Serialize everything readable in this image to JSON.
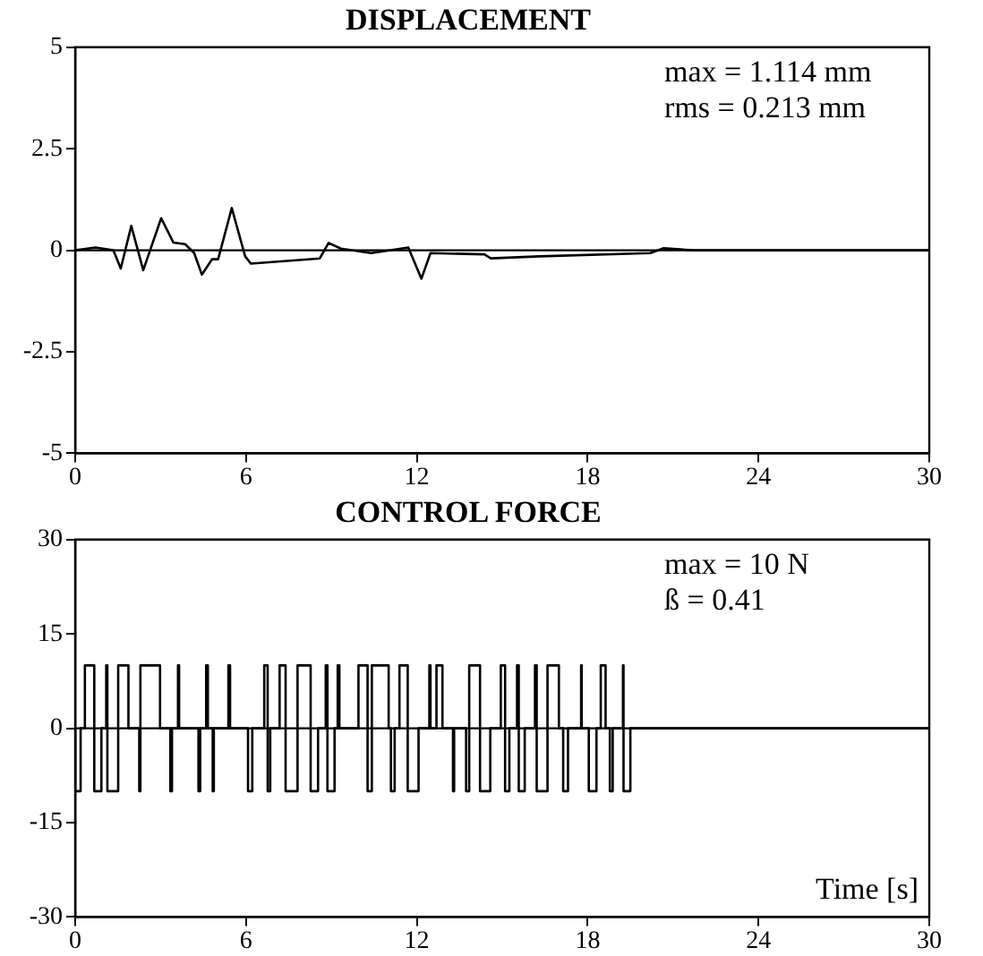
{
  "chart_data": [
    {
      "type": "line",
      "title": "DISPLACEMENT",
      "color": "#000000",
      "marker": "none",
      "grid": false,
      "legend": false,
      "annotations": [
        "max = 1.114 mm",
        "rms = 0.213 mm"
      ],
      "ref_lines": [
        {
          "axis": "y",
          "value": 0
        }
      ],
      "xlim": [
        0,
        30
      ],
      "xticks": [
        0,
        6,
        12,
        18,
        24,
        30
      ],
      "ylim": [
        -5,
        5
      ],
      "yticks": [
        -5,
        -2.5,
        0,
        2.5,
        5
      ],
      "x": [
        0,
        0.71,
        1.34,
        1.6,
        1.97,
        2.39,
        3.02,
        3.45,
        3.86,
        4.18,
        4.45,
        4.81,
        5.02,
        5.5,
        5.97,
        6.17,
        8.59,
        8.9,
        9.33,
        10.4,
        11.7,
        12.16,
        12.48,
        14.37,
        14.6,
        16.3,
        20.2,
        20.67,
        21.7,
        30
      ],
      "values": [
        0,
        0.07,
        0,
        -0.45,
        0.6,
        -0.49,
        0.79,
        0.19,
        0.15,
        -0.07,
        -0.6,
        -0.22,
        -0.22,
        1.04,
        -0.15,
        -0.33,
        -0.2,
        0.18,
        0.04,
        -0.07,
        0.07,
        -0.7,
        -0.07,
        -0.1,
        -0.2,
        -0.15,
        -0.07,
        0.05,
        0,
        0
      ]
    },
    {
      "type": "step",
      "title": "CONTROL FORCE",
      "xlabel": "Time [s]",
      "color": "#000000",
      "marker": "none",
      "grid": false,
      "legend": false,
      "annotations": [
        "max = 10 N",
        "ß = 0.41"
      ],
      "ref_lines": [
        {
          "axis": "y",
          "value": 0
        }
      ],
      "xlim": [
        0,
        30
      ],
      "xticks": [
        0,
        6,
        12,
        18,
        24,
        30
      ],
      "ylim": [
        -30,
        30
      ],
      "yticks": [
        -30,
        -15,
        0,
        15,
        30
      ],
      "x": [
        0,
        0.19,
        0.34,
        0.67,
        0.92,
        1.09,
        1.13,
        1.51,
        1.87,
        2.25,
        2.29,
        2.98,
        3.34,
        3.4,
        3.61,
        3.65,
        4.33,
        4.39,
        4.6,
        4.66,
        4.83,
        4.87,
        5.38,
        5.44,
        6.07,
        6.22,
        6.64,
        6.76,
        6.85,
        7.18,
        7.39,
        7.81,
        8.27,
        8.53,
        8.8,
        8.86,
        9.11,
        9.22,
        9.28,
        9.95,
        10.27,
        10.42,
        11.01,
        11.09,
        11.22,
        11.39,
        11.68,
        12.06,
        12.44,
        12.48,
        12.69,
        12.9,
        13.27,
        13.31,
        13.73,
        13.84,
        14.22,
        14.58,
        14.95,
        15.1,
        15.25,
        15.52,
        15.58,
        15.79,
        16.15,
        16.21,
        16.59,
        16.99,
        17.14,
        17.31,
        17.77,
        17.79,
        18.04,
        18.31,
        18.46,
        18.63,
        18.78,
        18.88,
        19.24,
        19.26,
        19.5,
        20.1,
        30
      ],
      "values": [
        0,
        -10,
        0,
        10,
        -10,
        0,
        10,
        -10,
        10,
        0,
        -10,
        10,
        0,
        -10,
        0,
        10,
        0,
        -10,
        0,
        10,
        0,
        -10,
        0,
        10,
        0,
        -10,
        0,
        10,
        -10,
        0,
        10,
        -10,
        10,
        -10,
        0,
        10,
        -10,
        0,
        10,
        0,
        10,
        -10,
        10,
        0,
        -10,
        0,
        10,
        -10,
        0,
        10,
        0,
        10,
        0,
        -10,
        0,
        -10,
        10,
        -10,
        0,
        10,
        -10,
        0,
        10,
        -10,
        0,
        10,
        -10,
        10,
        0,
        -10,
        0,
        10,
        0,
        -10,
        0,
        10,
        0,
        -10,
        0,
        10,
        -10,
        0,
        0
      ]
    }
  ]
}
